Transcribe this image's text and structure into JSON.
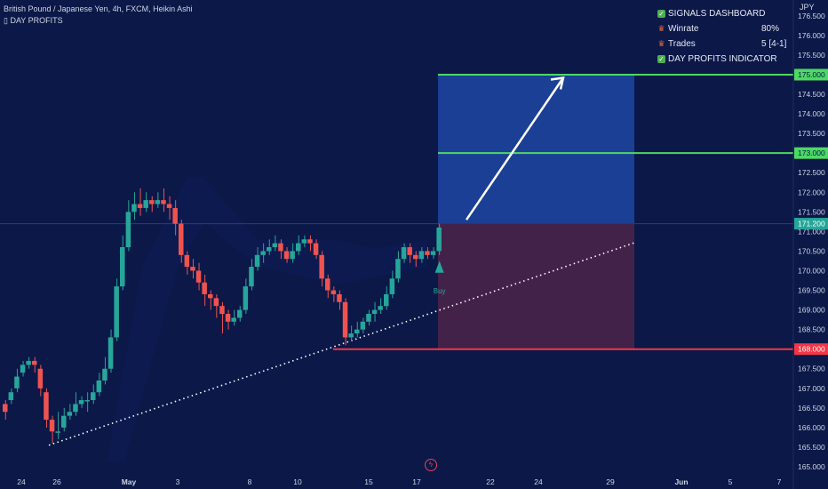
{
  "header": {
    "symbol_line": "British Pound / Japanese Yen, 4h, FXCM, Heikin Ashi",
    "indicator_line": "▯ DAY PROFITS"
  },
  "dashboard": {
    "title": "SIGNALS DASHBOARD",
    "winrate_label": "Winrate",
    "winrate_value": "80%",
    "trades_label": "Trades",
    "trades_value": "5 [4-1]",
    "indicator_label": "DAY PROFITS INDICATOR"
  },
  "icons": {
    "check": "check-icon",
    "trophy": "trophy-icon",
    "flash": "lightning-icon"
  },
  "colors": {
    "background": "#0b1848",
    "bull": "#26a69a",
    "bear": "#ef5350",
    "target_line": "#4cd964",
    "stop_line": "#f23645",
    "profit_zone": "#1b3f94",
    "loss_zone": "#43224a"
  },
  "chart_data": {
    "type": "candlestick",
    "currency_label": "JPY",
    "y_range": [
      165.0,
      176.7
    ],
    "y_ticks": [
      "176.500",
      "176.000",
      "175.500",
      "175.000",
      "174.500",
      "174.000",
      "173.500",
      "173.000",
      "172.500",
      "172.000",
      "171.500",
      "171.000",
      "170.500",
      "170.000",
      "169.500",
      "169.000",
      "168.500",
      "168.000",
      "167.500",
      "167.000",
      "166.500",
      "166.000",
      "165.500",
      "165.000"
    ],
    "x_ticks": [
      "24",
      "26",
      "May",
      "3",
      "8",
      "10",
      "15",
      "17",
      "22",
      "24",
      "29",
      "Jun",
      "5",
      "7"
    ],
    "price_labels": {
      "target2": "175.000",
      "target1": "173.000",
      "current": "171.200",
      "stop": "168.000"
    },
    "buy_label": "Buy",
    "candles": [
      {
        "o": 166.6,
        "c": 166.4,
        "h": 166.7,
        "l": 166.2
      },
      {
        "o": 166.7,
        "c": 166.9,
        "h": 167.0,
        "l": 166.6
      },
      {
        "o": 167.0,
        "c": 167.3,
        "h": 167.5,
        "l": 166.9
      },
      {
        "o": 167.4,
        "c": 167.6,
        "h": 167.7,
        "l": 167.3
      },
      {
        "o": 167.6,
        "c": 167.7,
        "h": 167.8,
        "l": 167.5
      },
      {
        "o": 167.7,
        "c": 167.6,
        "h": 167.8,
        "l": 167.4
      },
      {
        "o": 167.5,
        "c": 167.0,
        "h": 167.6,
        "l": 166.8
      },
      {
        "o": 166.9,
        "c": 166.2,
        "h": 167.0,
        "l": 166.0
      },
      {
        "o": 166.2,
        "c": 165.9,
        "h": 166.3,
        "l": 165.6
      },
      {
        "o": 165.9,
        "c": 165.9,
        "h": 166.4,
        "l": 165.7
      },
      {
        "o": 166.0,
        "c": 166.3,
        "h": 166.5,
        "l": 165.9
      },
      {
        "o": 166.3,
        "c": 166.4,
        "h": 166.6,
        "l": 166.2
      },
      {
        "o": 166.4,
        "c": 166.6,
        "h": 166.9,
        "l": 166.3
      },
      {
        "o": 166.6,
        "c": 166.7,
        "h": 166.8,
        "l": 166.5
      },
      {
        "o": 166.7,
        "c": 166.7,
        "h": 166.9,
        "l": 166.4
      },
      {
        "o": 166.7,
        "c": 166.9,
        "h": 167.1,
        "l": 166.6
      },
      {
        "o": 166.9,
        "c": 167.2,
        "h": 167.4,
        "l": 166.8
      },
      {
        "o": 167.2,
        "c": 167.5,
        "h": 167.8,
        "l": 167.1
      },
      {
        "o": 167.5,
        "c": 168.3,
        "h": 168.5,
        "l": 167.4
      },
      {
        "o": 168.3,
        "c": 169.6,
        "h": 169.8,
        "l": 168.2
      },
      {
        "o": 169.6,
        "c": 170.6,
        "h": 170.9,
        "l": 169.5
      },
      {
        "o": 170.6,
        "c": 171.5,
        "h": 171.8,
        "l": 170.5
      },
      {
        "o": 171.5,
        "c": 171.7,
        "h": 172.0,
        "l": 171.3
      },
      {
        "o": 171.7,
        "c": 171.6,
        "h": 172.1,
        "l": 171.4
      },
      {
        "o": 171.6,
        "c": 171.8,
        "h": 172.0,
        "l": 171.5
      },
      {
        "o": 171.8,
        "c": 171.7,
        "h": 171.9,
        "l": 171.5
      },
      {
        "o": 171.7,
        "c": 171.8,
        "h": 172.0,
        "l": 171.6
      },
      {
        "o": 171.8,
        "c": 171.7,
        "h": 172.1,
        "l": 171.5
      },
      {
        "o": 171.7,
        "c": 171.6,
        "h": 171.9,
        "l": 171.3
      },
      {
        "o": 171.6,
        "c": 171.2,
        "h": 171.8,
        "l": 170.9
      },
      {
        "o": 171.2,
        "c": 170.4,
        "h": 171.3,
        "l": 170.2
      },
      {
        "o": 170.4,
        "c": 170.1,
        "h": 170.5,
        "l": 169.9
      },
      {
        "o": 170.1,
        "c": 170.0,
        "h": 170.3,
        "l": 169.8
      },
      {
        "o": 170.0,
        "c": 169.7,
        "h": 170.2,
        "l": 169.5
      },
      {
        "o": 169.7,
        "c": 169.4,
        "h": 169.9,
        "l": 169.1
      },
      {
        "o": 169.4,
        "c": 169.3,
        "h": 169.5,
        "l": 169.0
      },
      {
        "o": 169.3,
        "c": 169.1,
        "h": 169.4,
        "l": 168.8
      },
      {
        "o": 169.1,
        "c": 168.9,
        "h": 169.2,
        "l": 168.4
      },
      {
        "o": 168.9,
        "c": 168.7,
        "h": 169.0,
        "l": 168.5
      },
      {
        "o": 168.7,
        "c": 168.8,
        "h": 169.0,
        "l": 168.6
      },
      {
        "o": 168.8,
        "c": 169.0,
        "h": 169.1,
        "l": 168.7
      },
      {
        "o": 169.0,
        "c": 169.6,
        "h": 169.8,
        "l": 168.9
      },
      {
        "o": 169.6,
        "c": 170.1,
        "h": 170.3,
        "l": 169.5
      },
      {
        "o": 170.1,
        "c": 170.4,
        "h": 170.6,
        "l": 170.0
      },
      {
        "o": 170.4,
        "c": 170.5,
        "h": 170.7,
        "l": 170.2
      },
      {
        "o": 170.5,
        "c": 170.6,
        "h": 170.8,
        "l": 170.4
      },
      {
        "o": 170.6,
        "c": 170.7,
        "h": 170.9,
        "l": 170.5
      },
      {
        "o": 170.7,
        "c": 170.5,
        "h": 170.8,
        "l": 170.3
      },
      {
        "o": 170.5,
        "c": 170.3,
        "h": 170.6,
        "l": 170.2
      },
      {
        "o": 170.3,
        "c": 170.5,
        "h": 170.7,
        "l": 170.2
      },
      {
        "o": 170.5,
        "c": 170.7,
        "h": 170.9,
        "l": 170.4
      },
      {
        "o": 170.7,
        "c": 170.8,
        "h": 170.9,
        "l": 170.6
      },
      {
        "o": 170.8,
        "c": 170.7,
        "h": 170.9,
        "l": 170.5
      },
      {
        "o": 170.7,
        "c": 170.4,
        "h": 170.8,
        "l": 170.3
      },
      {
        "o": 170.4,
        "c": 169.8,
        "h": 170.5,
        "l": 169.6
      },
      {
        "o": 169.8,
        "c": 169.5,
        "h": 169.9,
        "l": 169.3
      },
      {
        "o": 169.5,
        "c": 169.4,
        "h": 169.6,
        "l": 169.2
      },
      {
        "o": 169.4,
        "c": 169.2,
        "h": 169.5,
        "l": 169.0
      },
      {
        "o": 169.2,
        "c": 168.3,
        "h": 169.3,
        "l": 168.1
      },
      {
        "o": 168.3,
        "c": 168.4,
        "h": 168.6,
        "l": 168.2
      },
      {
        "o": 168.4,
        "c": 168.5,
        "h": 168.7,
        "l": 168.3
      },
      {
        "o": 168.5,
        "c": 168.7,
        "h": 168.8,
        "l": 168.4
      },
      {
        "o": 168.7,
        "c": 168.9,
        "h": 169.0,
        "l": 168.6
      },
      {
        "o": 168.9,
        "c": 169.0,
        "h": 169.2,
        "l": 168.7
      },
      {
        "o": 169.0,
        "c": 169.1,
        "h": 169.3,
        "l": 168.9
      },
      {
        "o": 169.1,
        "c": 169.4,
        "h": 169.6,
        "l": 169.0
      },
      {
        "o": 169.4,
        "c": 169.8,
        "h": 170.0,
        "l": 169.3
      },
      {
        "o": 169.8,
        "c": 170.3,
        "h": 170.5,
        "l": 169.7
      },
      {
        "o": 170.3,
        "c": 170.6,
        "h": 170.7,
        "l": 170.2
      },
      {
        "o": 170.6,
        "c": 170.4,
        "h": 170.7,
        "l": 170.2
      },
      {
        "o": 170.4,
        "c": 170.3,
        "h": 170.5,
        "l": 170.1
      },
      {
        "o": 170.3,
        "c": 170.5,
        "h": 170.6,
        "l": 170.2
      },
      {
        "o": 170.5,
        "c": 170.4,
        "h": 170.6,
        "l": 170.3
      },
      {
        "o": 170.4,
        "c": 170.5,
        "h": 170.6,
        "l": 170.3
      },
      {
        "o": 170.5,
        "c": 171.1,
        "h": 171.2,
        "l": 170.4
      }
    ],
    "trendline": {
      "from": {
        "candle": 8,
        "price": 165.5
      },
      "to": {
        "candle": 115,
        "price": 170.7
      }
    },
    "position": {
      "entry": 171.2,
      "target1": 173.0,
      "target2": 175.0,
      "stop": 168.0
    }
  }
}
